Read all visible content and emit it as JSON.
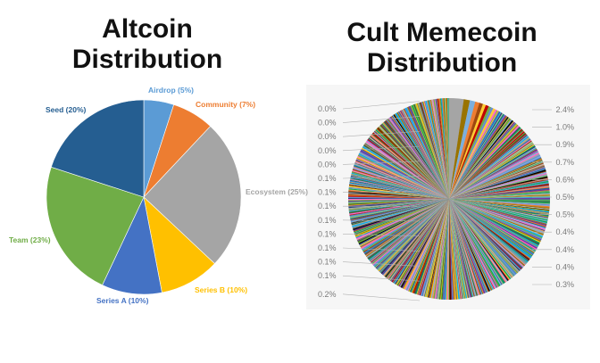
{
  "titles": {
    "left": "Altcoin Distribution",
    "right": "Cult Memecoin Distribution"
  },
  "chart_data": [
    {
      "type": "pie",
      "title": "Altcoin Distribution",
      "slices": [
        {
          "label": "Airdrop (5%)",
          "value": 5,
          "color": "#5b9bd5"
        },
        {
          "label": "Community (7%)",
          "value": 7,
          "color": "#ed7d31"
        },
        {
          "label": "Ecosystem (25%)",
          "value": 25,
          "color": "#a5a5a5"
        },
        {
          "label": "Series B (10%)",
          "value": 10,
          "color": "#ffc000"
        },
        {
          "label": "Series A (10%)",
          "value": 10,
          "color": "#4472c4"
        },
        {
          "label": "Team (23%)",
          "value": 23,
          "color": "#70ad47"
        },
        {
          "label": "Seed (20%)",
          "value": 20,
          "color": "#255e91"
        }
      ]
    },
    {
      "type": "pie",
      "title": "Cult Memecoin Distribution",
      "left_labels": [
        "0.0%",
        "0.0%",
        "0.0%",
        "0.0%",
        "0.0%",
        "0.1%",
        "0.1%",
        "0.1%",
        "0.1%",
        "0.1%",
        "0.1%",
        "0.1%",
        "0.1%",
        "0.2%"
      ],
      "right_labels": [
        "2.4%",
        "1.0%",
        "0.9%",
        "0.7%",
        "0.6%",
        "0.5%",
        "0.5%",
        "0.4%",
        "0.4%",
        "0.4%",
        "0.3%"
      ],
      "palette": [
        "#4472c4",
        "#ed7d31",
        "#a5a5a5",
        "#ffc000",
        "#5b9bd5",
        "#70ad47",
        "#264478",
        "#9e480e",
        "#636363",
        "#997300",
        "#255e91",
        "#43682b",
        "#698ed0",
        "#f1975a",
        "#b7b7b7",
        "#ffcd33",
        "#7cafdd",
        "#8cc168",
        "#c00000",
        "#7030a0",
        "#00b0f0",
        "#00b050",
        "#ff66cc",
        "#000000"
      ]
    }
  ]
}
